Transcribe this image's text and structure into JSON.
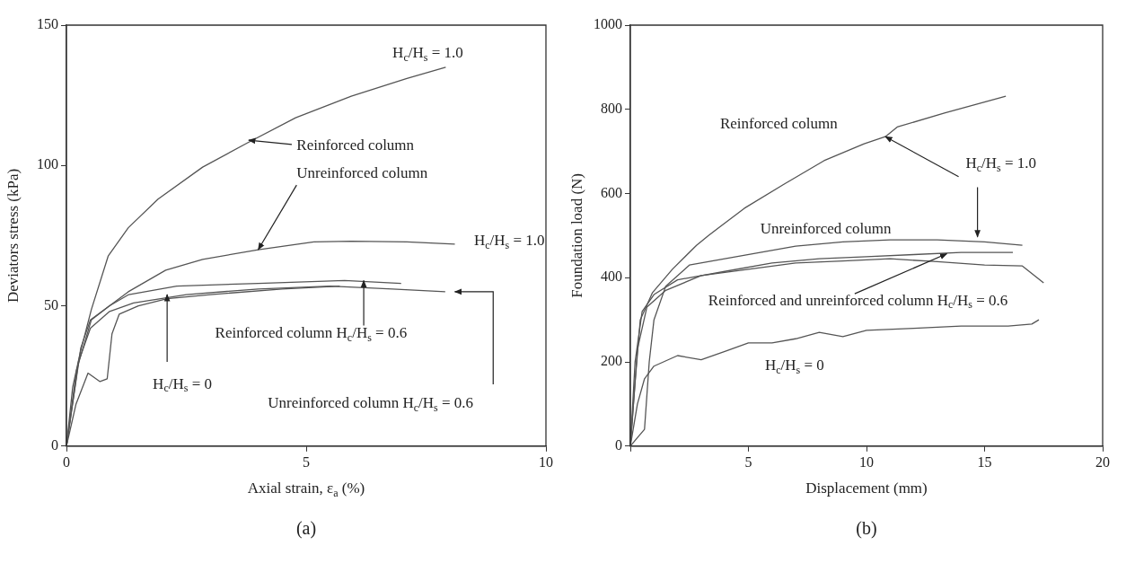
{
  "chart_data": [
    {
      "type": "line",
      "xlabel": "Axial strain, ε$_{a}$ (%)",
      "ylabel": "Deviators stress (kPa)",
      "xlim": [
        0,
        10
      ],
      "ylim": [
        0,
        150
      ],
      "xticks": [
        0,
        5,
        10
      ],
      "yticks": [
        0,
        50,
        100,
        150
      ],
      "series": [
        {
          "color": "#555555",
          "x": [
            0,
            0.13,
            0.29,
            0.52,
            0.87,
            1.29,
            1.91,
            2.84,
            3.77,
            4.78,
            5.94,
            7.1,
            7.91
          ],
          "values": [
            0,
            21,
            33.5,
            48.7,
            67.7,
            77.8,
            88,
            99.4,
            108,
            117,
            124.7,
            131,
            135
          ]
        },
        {
          "color": "#555555",
          "x": [
            0,
            0.21,
            0.52,
            0.9,
            1.29,
            2.07,
            2.84,
            4,
            5.16,
            5.94,
            7.1,
            8.1
          ],
          "values": [
            0,
            27,
            45,
            50,
            55,
            62.7,
            66.5,
            70,
            72.8,
            73,
            72.8,
            72
          ]
        },
        {
          "color": "#555555",
          "x": [
            0,
            0.3,
            0.5,
            0.9,
            1.3,
            2.3,
            4,
            5.8,
            6.98
          ],
          "values": [
            0,
            35,
            45,
            50,
            54,
            57,
            58,
            59,
            58
          ]
        },
        {
          "color": "#555555",
          "x": [
            0,
            0.25,
            0.5,
            0.9,
            1.4,
            2.5,
            4,
            5.5,
            6.8,
            7.9
          ],
          "values": [
            0,
            30,
            42,
            48,
            51,
            54,
            56,
            57,
            56,
            55
          ]
        },
        {
          "color": "#555555",
          "x": [
            0,
            0.2,
            0.45,
            0.7,
            0.85,
            0.95,
            1.1,
            1.5,
            2.1,
            3,
            4.5,
            5.7
          ],
          "values": [
            0,
            15,
            26,
            23,
            24,
            40,
            47,
            50,
            52.5,
            54,
            56,
            57
          ]
        }
      ],
      "annotations": [
        "H$_{c}$/H$_{s}$ = 1.0",
        {
          "text": "Reinforced column",
          "x": 3.8,
          "y": 109
        },
        {
          "text": "Unreinforced column",
          "x": 4,
          "y": 70
        },
        "H$_{c}$/H$_{s}$ = 1.0",
        {
          "text": "Reinforced column H$_{c}$/H$_{s}$ = 0.6",
          "x": 6.2,
          "y": 59
        },
        {
          "text": "H$_{c}$/H$_{s}$ = 0",
          "x": 2.1,
          "y": 54
        },
        "Unreinforced column H$_{c}$/H$_{s}$ = 0.6",
        "(a)"
      ]
    },
    {
      "type": "line",
      "xlabel": "Displacement (mm)",
      "ylabel": "Foundation load (N)",
      "xlim": [
        0,
        20
      ],
      "ylim": [
        0,
        1000
      ],
      "xticks": [
        {
          "value": 0,
          "label": null
        },
        5,
        10,
        15,
        20
      ],
      "yticks": [
        0,
        200,
        400,
        600,
        800,
        1000
      ],
      "series": [
        {
          "color": "#555555",
          "x": [
            0,
            0.2,
            0.42,
            0.93,
            1.78,
            2.8,
            3.3,
            4.83,
            6.5,
            8.2,
            9.9,
            10.8,
            11.3,
            13.3,
            15.9
          ],
          "values": [
            0,
            150,
            300,
            364,
            420,
            477,
            500,
            565,
            622,
            678,
            718,
            735,
            758,
            791,
            831
          ]
        },
        {
          "color": "#555555",
          "x": [
            0,
            0.3,
            0.6,
            0.8,
            1,
            1.5,
            2.5,
            4,
            5.5,
            7,
            9,
            11,
            13,
            15,
            16.6
          ],
          "values": [
            0,
            20,
            40,
            200,
            300,
            380,
            430,
            445,
            460,
            475,
            485,
            490,
            490,
            485,
            477
          ]
        },
        {
          "color": "#555555",
          "x": [
            0,
            0.2,
            0.5,
            1,
            2,
            4,
            6,
            8,
            10,
            12,
            14,
            16.2
          ],
          "values": [
            0,
            200,
            320,
            360,
            395,
            415,
            435,
            445,
            450,
            455,
            460,
            460
          ]
        },
        {
          "color": "#555555",
          "x": [
            0,
            0.3,
            0.7,
            1.5,
            3,
            5,
            7,
            9,
            11,
            13,
            15,
            16.6,
            17.5
          ],
          "values": [
            0,
            230,
            330,
            370,
            405,
            420,
            435,
            440,
            445,
            438,
            430,
            428,
            388
          ]
        },
        {
          "color": "#555555",
          "x": [
            0,
            0.3,
            0.6,
            1,
            2,
            3,
            4,
            5,
            6,
            7,
            8,
            9,
            10,
            12,
            14,
            16,
            17,
            17.3
          ],
          "values": [
            0,
            100,
            160,
            190,
            215,
            205,
            225,
            245,
            245,
            255,
            270,
            260,
            275,
            280,
            285,
            285,
            290,
            300
          ]
        }
      ],
      "annotations": [
        "Reinforced column",
        {
          "text": "H$_{c}$/H$_{s}$ = 1.0",
          "x": 10.8,
          "y": 735
        },
        "Unreinforced column",
        {
          "text": "Reinforced and unreinforced column H$_{c}$/H$_{s}$ = 0.6",
          "x": 13.4,
          "y": 457
        },
        "H$_{c}$/H$_{s}$ = 0",
        "(b)"
      ]
    }
  ]
}
